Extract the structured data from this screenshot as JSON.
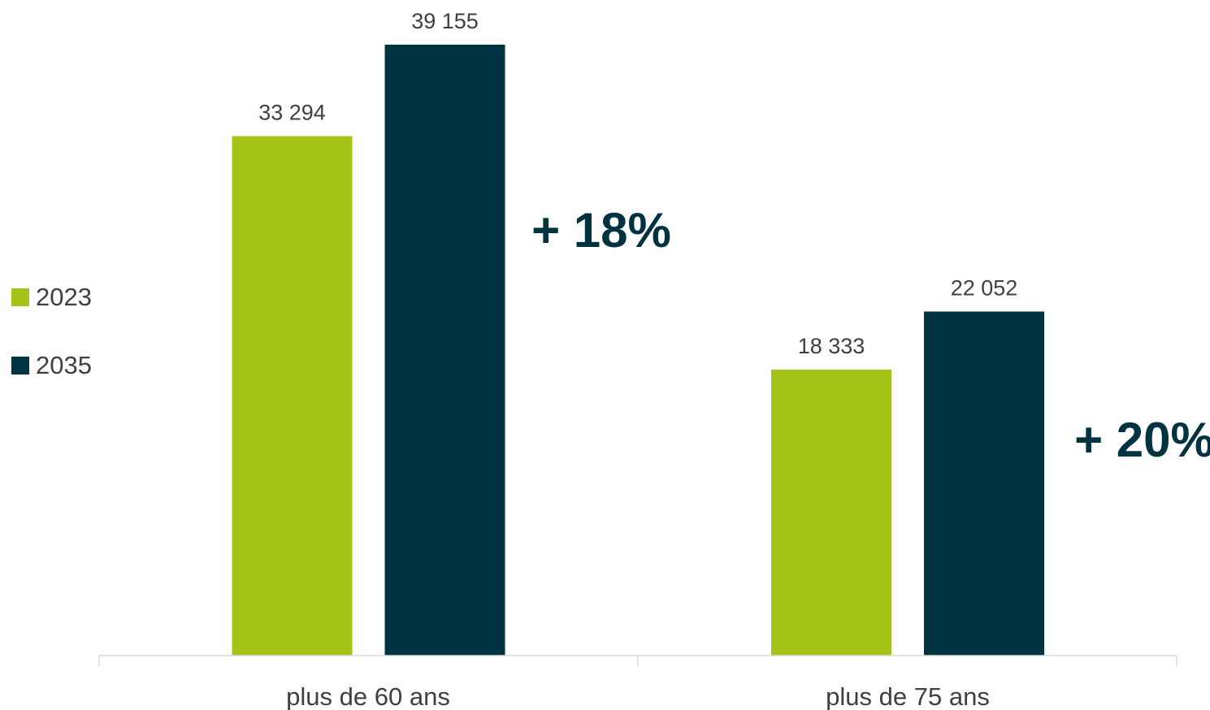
{
  "chart_data": {
    "type": "bar",
    "categories": [
      "plus de 60 ans",
      "plus de 75 ans"
    ],
    "series": [
      {
        "name": "2023",
        "values": [
          33294,
          18333
        ],
        "labels": [
          "33 294",
          "18 333"
        ],
        "color": "#A4C41A"
      },
      {
        "name": "2035",
        "values": [
          39155,
          22052
        ],
        "labels": [
          "39 155",
          "22 052"
        ],
        "color": "#003341"
      }
    ],
    "annotations": [
      "+ 18%",
      "+ 20%"
    ],
    "title": "",
    "xlabel": "",
    "ylabel": "",
    "ylim": [
      0,
      40000
    ],
    "grid": false,
    "legend_position": "left"
  }
}
